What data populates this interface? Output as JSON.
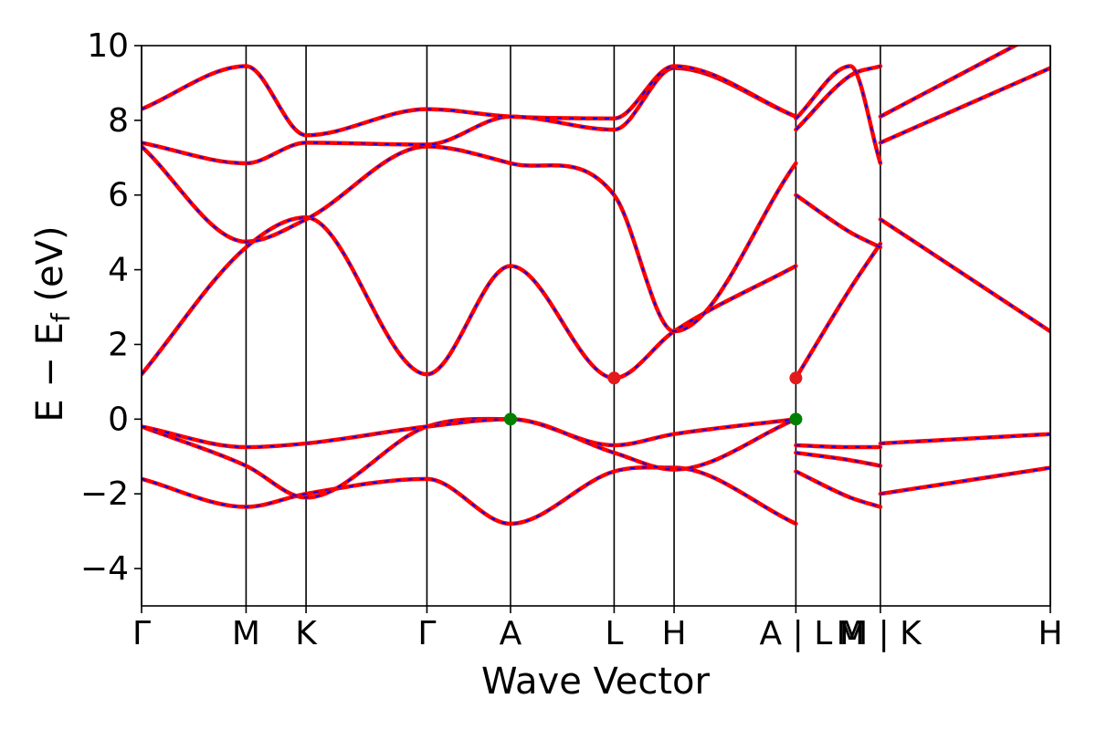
{
  "chart_data": {
    "type": "line",
    "xlabel": "Wave Vector",
    "ylabel": "E − E",
    "ylabel_sub": "f",
    "ylabel_unit": " (eV)",
    "ylim": [
      -5,
      10
    ],
    "xlim": [
      0,
      1
    ],
    "y_ticks": [
      -4,
      -2,
      0,
      2,
      4,
      6,
      8,
      10
    ],
    "y_tick_labels": [
      "−4",
      "−2",
      "0",
      "2",
      "4",
      "6",
      "8",
      "10"
    ],
    "k_points": [
      {
        "label": "Γ",
        "x": 0.0
      },
      {
        "label": "M",
        "x": 0.115
      },
      {
        "label": "K",
        "x": 0.181
      },
      {
        "label": "Γ",
        "x": 0.314
      },
      {
        "label": "A",
        "x": 0.406
      },
      {
        "label": "L",
        "x": 0.52
      },
      {
        "label": "H",
        "x": 0.586
      },
      {
        "label": "A | L",
        "x": 0.72
      },
      {
        "label": "M | K",
        "x": 0.813
      },
      {
        "label": "H",
        "x": 1.0
      }
    ],
    "label_extras": [
      {
        "label": "M",
        "x": 0.78
      }
    ],
    "band_colors": {
      "line": "#ff0000",
      "dash": "#0000ff"
    },
    "segments": [
      {
        "name": "Γ-M-K-Γ-A-L-H-A",
        "x": [
          0.0,
          0.115,
          0.181,
          0.314,
          0.406,
          0.52,
          0.586,
          0.72
        ],
        "bands": [
          [
            -1.6,
            -2.35,
            -2.0,
            -1.6,
            -2.8,
            -1.4,
            -1.3,
            -2.8
          ],
          [
            -0.2,
            -1.25,
            -2.1,
            -0.2,
            0.0,
            -0.9,
            -1.35,
            0.0
          ],
          [
            -0.2,
            -0.75,
            -0.65,
            -0.2,
            0.0,
            -0.7,
            -0.4,
            0.0
          ],
          [
            1.2,
            4.6,
            5.4,
            1.2,
            4.1,
            1.1,
            2.35,
            4.1
          ],
          [
            7.3,
            4.75,
            5.35,
            7.3,
            6.85,
            6.0,
            2.35,
            6.85
          ],
          [
            7.4,
            6.85,
            7.4,
            7.35,
            8.1,
            7.75,
            9.4,
            8.1
          ],
          [
            8.3,
            9.45,
            7.6,
            8.3,
            8.1,
            8.05,
            9.45,
            8.1
          ]
        ]
      },
      {
        "name": "L-M",
        "x": [
          0.72,
          0.78,
          0.813
        ],
        "bands": [
          [
            -1.4,
            -2.1,
            -2.35
          ],
          [
            -0.9,
            -1.1,
            -1.25
          ],
          [
            -0.7,
            -0.75,
            -0.75
          ],
          [
            1.1,
            3.5,
            4.7
          ],
          [
            6.0,
            5.0,
            4.6
          ],
          [
            7.75,
            9.2,
            9.45
          ],
          [
            8.05,
            9.45,
            6.85
          ]
        ]
      },
      {
        "name": "K-H",
        "x": [
          0.813,
          1.0
        ],
        "bands": [
          [
            -2.0,
            -1.3
          ],
          [
            -0.65,
            -0.4
          ],
          [
            5.35,
            2.35
          ],
          [
            7.4,
            9.4
          ],
          [
            8.1,
            10.5
          ]
        ]
      }
    ],
    "points": [
      {
        "kind": "vbm",
        "x": 0.406,
        "y": 0.0,
        "color": "#008000"
      },
      {
        "kind": "vbm",
        "x": 0.72,
        "y": 0.0,
        "color": "#008000"
      },
      {
        "kind": "cbm",
        "x": 0.52,
        "y": 1.1,
        "color": "#e31a1c"
      },
      {
        "kind": "cbm",
        "x": 0.72,
        "y": 1.1,
        "color": "#e31a1c"
      }
    ],
    "grid": false,
    "legend": "none"
  }
}
